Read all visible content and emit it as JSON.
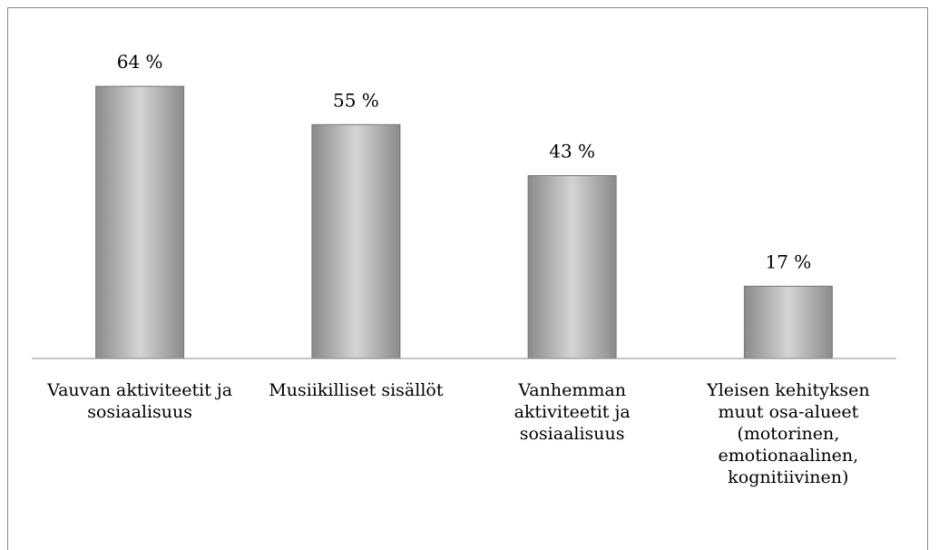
{
  "chart_data": {
    "type": "bar",
    "categories": [
      "Vauvan aktiviteetit ja sosiaalisuus",
      "Musiikilliset sisällöt",
      "Vanhemman aktiviteetit ja sosiaalisuus",
      "Yleisen kehityksen muut osa-alueet (motorinen, emotionaalinen, kognitiivinen)"
    ],
    "values": [
      64,
      55,
      43,
      17
    ],
    "value_labels": [
      "64 %",
      "55 %",
      "43 %",
      "17 %"
    ],
    "color": "#9a9a9a",
    "ylim": [
      0,
      70
    ]
  }
}
